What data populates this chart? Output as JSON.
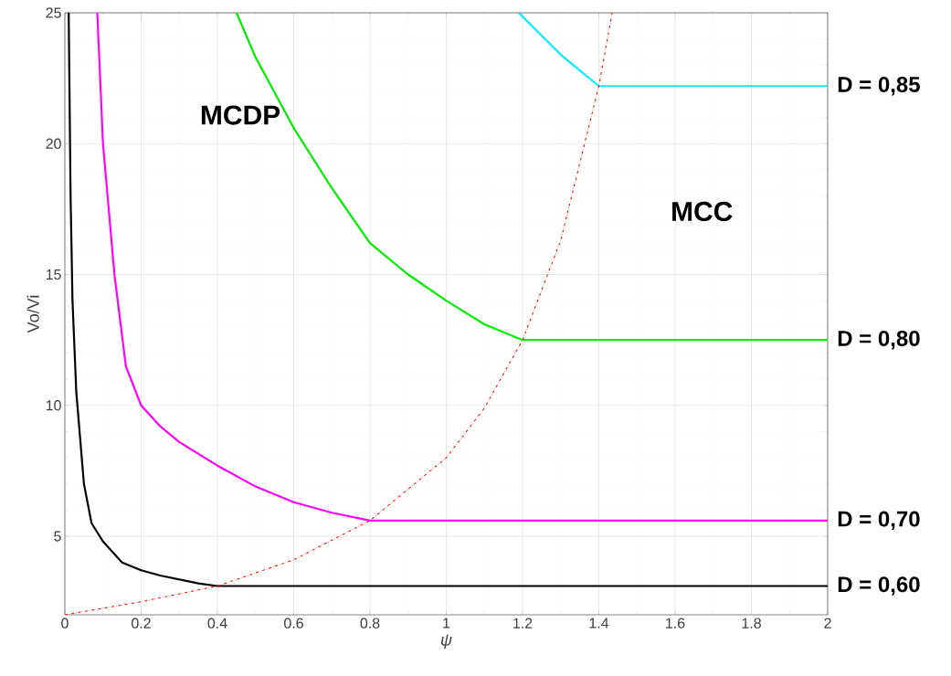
{
  "chart_data": {
    "type": "line",
    "xlabel": "*ψ*",
    "ylabel": "Vo/Vi",
    "xlim": [
      0,
      2
    ],
    "ylim": [
      2,
      25
    ],
    "xticks": [
      0,
      0.2,
      0.4,
      0.6,
      0.8,
      1,
      1.2,
      1.4,
      1.6,
      1.8,
      2
    ],
    "yticks": [
      5,
      10,
      15,
      20,
      25
    ],
    "grid": true,
    "marker": "none",
    "series": [
      {
        "name": "D = 0,60",
        "color": "#000000",
        "x": [
          0.01,
          0.015,
          0.02,
          0.03,
          0.05,
          0.07,
          0.1,
          0.15,
          0.2,
          0.25,
          0.3,
          0.35,
          0.4,
          2
        ],
        "values": [
          25,
          18,
          14,
          10.5,
          7,
          5.5,
          4.8,
          4.0,
          3.7,
          3.5,
          3.35,
          3.2,
          3.1,
          3.1
        ]
      },
      {
        "name": "D = 0,70",
        "color": "#ff00ff",
        "x": [
          0.085,
          0.1,
          0.13,
          0.16,
          0.2,
          0.25,
          0.3,
          0.4,
          0.5,
          0.6,
          0.7,
          0.8,
          2
        ],
        "values": [
          25,
          20,
          15,
          11.5,
          10,
          9.2,
          8.6,
          7.7,
          6.9,
          6.3,
          5.9,
          5.6,
          5.6
        ]
      },
      {
        "name": "D = 0,80",
        "color": "#00ee00",
        "x": [
          0.45,
          0.5,
          0.6,
          0.7,
          0.8,
          0.9,
          1.0,
          1.1,
          1.2,
          2
        ],
        "values": [
          25,
          23.3,
          20.6,
          18.3,
          16.2,
          15.0,
          14.0,
          13.1,
          12.5,
          12.5
        ]
      },
      {
        "name": "D = 0,85",
        "color": "#00eeff",
        "x": [
          1.19,
          1.3,
          1.4,
          2
        ],
        "values": [
          25,
          23.4,
          22.2,
          22.2
        ]
      },
      {
        "color": "#ff0000",
        "line_style": "dashdot",
        "x": [
          0,
          0.2,
          0.4,
          0.6,
          0.8,
          1.0,
          1.1,
          1.2,
          1.3,
          1.4,
          1.435
        ],
        "values": [
          2,
          2.5,
          3.1,
          4.1,
          5.6,
          8,
          9.9,
          12.5,
          16.3,
          22.2,
          25
        ]
      }
    ],
    "annotations": [
      "MCDP",
      "MCC"
    ]
  }
}
